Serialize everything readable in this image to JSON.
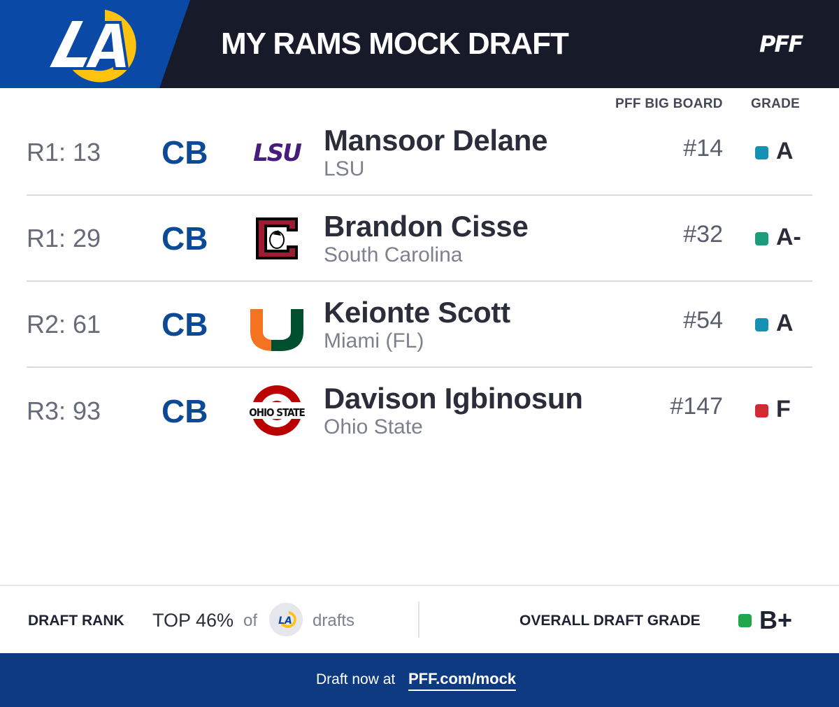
{
  "header": {
    "title": "MY RAMS MOCK DRAFT",
    "brand_logo_text": "PFF",
    "team_logo_text": "LA",
    "colors": {
      "blue": "#0a4aa6",
      "dark": "#171b29",
      "gold": "#ffc20e"
    }
  },
  "columns": {
    "board": "PFF BIG BOARD",
    "grade": "GRADE"
  },
  "picks": [
    {
      "pick": "R1: 13",
      "position": "CB",
      "name": "Mansoor Delane",
      "school": "LSU",
      "logo": "lsu-logo",
      "logo_text": "LSU",
      "board": "#14",
      "grade": "A",
      "grade_color": "#1592b3"
    },
    {
      "pick": "R1: 29",
      "position": "CB",
      "name": "Brandon Cisse",
      "school": "South Carolina",
      "logo": "south-carolina-logo",
      "logo_text": "C",
      "board": "#32",
      "grade": "A-",
      "grade_color": "#1a9c7d"
    },
    {
      "pick": "R2: 61",
      "position": "CB",
      "name": "Keionte Scott",
      "school": "Miami (FL)",
      "logo": "miami-logo",
      "logo_text": "U",
      "board": "#54",
      "grade": "A",
      "grade_color": "#1592b3"
    },
    {
      "pick": "R3: 93",
      "position": "CB",
      "name": "Davison Igbinosun",
      "school": "Ohio State",
      "logo": "ohio-state-logo",
      "logo_text": "OHIO STATE",
      "board": "#147",
      "grade": "F",
      "grade_color": "#d22a35"
    }
  ],
  "summary": {
    "rank_label": "DRAFT RANK",
    "rank_value": "TOP 46%",
    "rank_of": "of",
    "rank_drafts": "drafts",
    "overall_label": "OVERALL DRAFT GRADE",
    "overall_grade": "B+",
    "overall_color": "#22a64a"
  },
  "footer": {
    "text": "Draft now at",
    "link": "PFF.com/mock"
  }
}
